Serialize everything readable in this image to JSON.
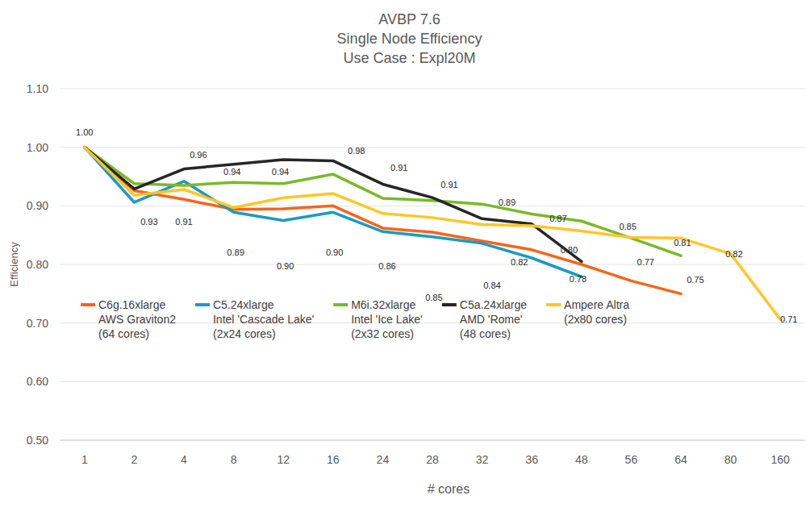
{
  "chart_data": {
    "type": "line",
    "title": "AVBP 7.6\nSingle Node Efficiency\nUse Case : Expl20M",
    "x_label": "# cores",
    "y_label": "Efficiency",
    "categories": [
      "1",
      "2",
      "4",
      "8",
      "12",
      "16",
      "24",
      "28",
      "32",
      "36",
      "48",
      "56",
      "64",
      "80",
      "160"
    ],
    "ylim": [
      0.5,
      1.1
    ],
    "yticks": [
      {
        "value": 0.5,
        "label": "0.50"
      },
      {
        "value": 0.6,
        "label": "0.60"
      },
      {
        "value": 0.7,
        "label": "0.70"
      },
      {
        "value": 0.8,
        "label": "0.80"
      },
      {
        "value": 0.9,
        "label": "0.90"
      },
      {
        "value": 1.0,
        "label": "1.00"
      },
      {
        "value": 1.1,
        "label": "1.10"
      }
    ],
    "grid": true,
    "legend": "bottom",
    "series": [
      {
        "name": "C6g.16xlarge\nAWS Graviton2\n(64 cores)",
        "color": "#f4661b",
        "values": [
          1.0,
          0.926,
          0.911,
          0.894,
          0.895,
          0.9,
          0.862,
          0.855,
          0.84,
          0.825,
          0.8,
          0.772,
          0.75,
          null,
          null
        ]
      },
      {
        "name": "C5.24xlarge\nIntel 'Cascade Lake'\n(2x24 cores)",
        "color": "#1b9ac2",
        "values": [
          1.0,
          0.906,
          0.942,
          0.889,
          0.875,
          0.889,
          0.856,
          0.847,
          0.836,
          0.811,
          0.779,
          null,
          null,
          null,
          null
        ]
      },
      {
        "name": "M6i.32xlarge\nIntel 'Ice Lake'\n(2x32 cores)",
        "color": "#7ab929",
        "values": [
          1.0,
          0.938,
          0.935,
          0.94,
          0.938,
          0.954,
          0.913,
          0.909,
          0.903,
          0.886,
          0.874,
          0.845,
          0.815,
          null,
          null
        ]
      },
      {
        "name": "C5a.24xlarge\nAMD 'Rome'\n(48 cores)",
        "color": "#262626",
        "values": [
          1.0,
          0.929,
          0.963,
          0.971,
          0.979,
          0.977,
          0.937,
          0.914,
          0.878,
          0.869,
          0.805,
          null,
          null,
          null,
          null
        ]
      },
      {
        "name": "Ampere Altra\n(2x80 cores)",
        "color": "#ffc627",
        "values": [
          1.0,
          0.918,
          0.928,
          0.897,
          0.914,
          0.921,
          0.887,
          0.88,
          0.868,
          0.866,
          0.857,
          0.846,
          0.845,
          0.818,
          0.706
        ]
      }
    ],
    "annotations": [
      {
        "text": "1.00",
        "x": 0,
        "y": 1.026
      },
      {
        "text": "0.93",
        "x": 1.3,
        "y": 0.873
      },
      {
        "text": "0.96",
        "x": 2.29,
        "y": 0.987
      },
      {
        "text": "0.91",
        "x": 2.0,
        "y": 0.873
      },
      {
        "text": "0.94",
        "x": 2.97,
        "y": 0.958
      },
      {
        "text": "0.94",
        "x": 3.94,
        "y": 0.958
      },
      {
        "text": "0.89",
        "x": 3.04,
        "y": 0.821
      },
      {
        "text": "0.90",
        "x": 4.04,
        "y": 0.797
      },
      {
        "text": "0.90",
        "x": 5.03,
        "y": 0.821
      },
      {
        "text": "0.98",
        "x": 5.47,
        "y": 0.994
      },
      {
        "text": "0.91",
        "x": 6.33,
        "y": 0.965
      },
      {
        "text": "0.86",
        "x": 6.09,
        "y": 0.797
      },
      {
        "text": "0.91",
        "x": 7.34,
        "y": 0.936
      },
      {
        "text": "0.85",
        "x": 7.03,
        "y": 0.744
      },
      {
        "text": "0.84",
        "x": 8.2,
        "y": 0.764
      },
      {
        "text": "0.89",
        "x": 8.5,
        "y": 0.906
      },
      {
        "text": "0.82",
        "x": 8.75,
        "y": 0.804
      },
      {
        "text": "0.87",
        "x": 9.53,
        "y": 0.879
      },
      {
        "text": "0.80",
        "x": 9.75,
        "y": 0.825
      },
      {
        "text": "0.78",
        "x": 9.93,
        "y": 0.775
      },
      {
        "text": "0.85",
        "x": 10.93,
        "y": 0.865
      },
      {
        "text": "0.77",
        "x": 11.29,
        "y": 0.804
      },
      {
        "text": "0.81",
        "x": 12.03,
        "y": 0.837
      },
      {
        "text": "0.75",
        "x": 12.29,
        "y": 0.774
      },
      {
        "text": "0.82",
        "x": 13.07,
        "y": 0.818
      },
      {
        "text": "0.71",
        "x": 14.17,
        "y": 0.707
      }
    ]
  }
}
